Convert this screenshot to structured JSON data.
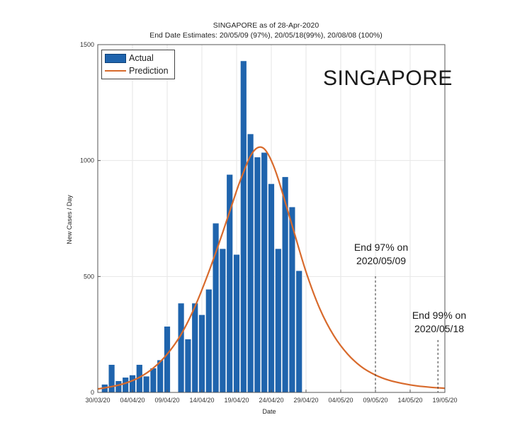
{
  "chart_data": {
    "type": "bar",
    "title": "SINGAPORE as of 28-Apr-2020",
    "subtitle": "End Date Estimates: 20/05/09 (97%), 20/05/18(99%), 20/08/08 (100%)",
    "big_label": "SINGAPORE",
    "xlabel": "Date",
    "ylabel": "New Cases / Day",
    "ylim": [
      0,
      1500
    ],
    "yticks": [
      0,
      500,
      1000,
      1500
    ],
    "xlim": [
      0,
      50
    ],
    "xticks": [
      {
        "day": 0,
        "label": "30/03/20"
      },
      {
        "day": 5,
        "label": "04/04/20"
      },
      {
        "day": 10,
        "label": "09/04/20"
      },
      {
        "day": 15,
        "label": "14/04/20"
      },
      {
        "day": 20,
        "label": "19/04/20"
      },
      {
        "day": 25,
        "label": "24/04/20"
      },
      {
        "day": 30,
        "label": "29/04/20"
      },
      {
        "day": 35,
        "label": "04/05/20"
      },
      {
        "day": 40,
        "label": "09/05/20"
      },
      {
        "day": 45,
        "label": "14/05/20"
      },
      {
        "day": 50,
        "label": "19/05/20"
      }
    ],
    "grid": true,
    "legend_position": "top-left",
    "series": [
      {
        "name": "Actual",
        "type": "bar",
        "color": "#1f64ad",
        "start_date": "31/03/20",
        "values": [
          35,
          120,
          50,
          65,
          75,
          120,
          70,
          105,
          140,
          285,
          0,
          385,
          230,
          385,
          335,
          445,
          730,
          620,
          940,
          595,
          1430,
          1115,
          1015,
          1035,
          900,
          620,
          930,
          800,
          525
        ]
      },
      {
        "name": "Prediction",
        "type": "line",
        "color": "#d86a2c",
        "x": [
          0,
          2,
          4,
          6,
          8,
          10,
          12,
          14,
          16,
          18,
          20,
          21,
          22,
          23,
          24,
          25,
          26,
          28,
          30,
          32,
          34,
          36,
          38,
          40,
          42,
          44,
          46,
          48,
          50
        ],
        "y": [
          15,
          25,
          40,
          65,
          105,
          165,
          250,
          370,
          520,
          690,
          870,
          950,
          1020,
          1055,
          1050,
          1000,
          920,
          720,
          520,
          360,
          245,
          165,
          110,
          75,
          52,
          38,
          28,
          22,
          18
        ]
      }
    ],
    "annotations": [
      {
        "text_line1": "End 97% on",
        "text_line2": "2020/05/09",
        "x": 40
      },
      {
        "text_line1": "End 99% on",
        "text_line2": "2020/05/18",
        "x": 49
      }
    ]
  }
}
